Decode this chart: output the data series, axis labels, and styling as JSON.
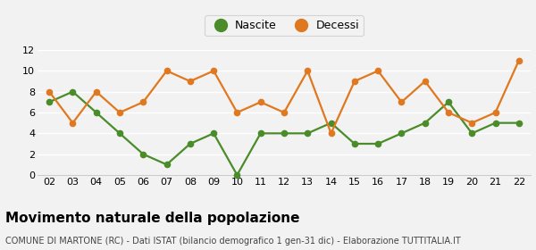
{
  "years": [
    "02",
    "03",
    "04",
    "05",
    "06",
    "07",
    "08",
    "09",
    "10",
    "11",
    "12",
    "13",
    "14",
    "15",
    "16",
    "17",
    "18",
    "19",
    "20",
    "21",
    "22"
  ],
  "nascite": [
    7,
    8,
    6,
    4,
    2,
    1,
    3,
    4,
    0,
    4,
    4,
    4,
    5,
    3,
    3,
    4,
    5,
    7,
    4,
    5,
    5
  ],
  "decessi": [
    8,
    5,
    8,
    6,
    7,
    10,
    9,
    10,
    6,
    7,
    6,
    10,
    4,
    9,
    10,
    7,
    9,
    6,
    5,
    6,
    11
  ],
  "nascite_color": "#4a8c2a",
  "decessi_color": "#e07820",
  "title": "Movimento naturale della popolazione",
  "subtitle": "COMUNE DI MARTONE (RC) - Dati ISTAT (bilancio demografico 1 gen-31 dic) - Elaborazione TUTTITALIA.IT",
  "legend_nascite": "Nascite",
  "legend_decessi": "Decessi",
  "ylim": [
    0,
    12
  ],
  "yticks": [
    0,
    2,
    4,
    6,
    8,
    10,
    12
  ],
  "background_color": "#f2f2f2",
  "plot_background": "#f2f2f2",
  "grid_color": "#ffffff",
  "marker": "o",
  "marker_size": 4.5,
  "line_width": 1.6,
  "title_fontsize": 11,
  "subtitle_fontsize": 7,
  "legend_fontsize": 9,
  "tick_fontsize": 8
}
